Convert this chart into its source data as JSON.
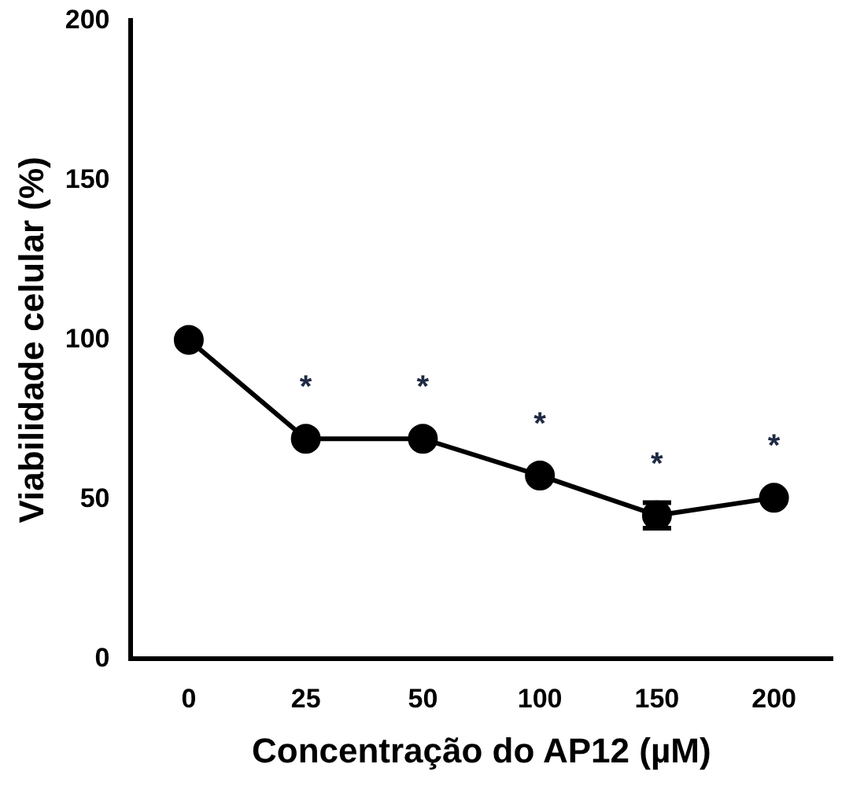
{
  "chart_data": {
    "type": "line",
    "xlabel": "Concentração do AP12 (µM)",
    "ylabel": "Viabilidade celular (%)",
    "categories": [
      "0",
      "25",
      "50",
      "100",
      "150",
      "200"
    ],
    "series": [
      {
        "color": "#000000",
        "values": [
          100,
          69,
          69,
          57.5,
          45,
          50.5
        ],
        "errors": [
          null,
          null,
          null,
          null,
          4,
          null
        ],
        "value_labels": [
          null,
          "*",
          "*",
          "*",
          "*",
          "*"
        ]
      }
    ],
    "ylim": [
      0,
      200
    ],
    "yticks": [
      0,
      50,
      100,
      150,
      200
    ],
    "grid": false,
    "legend": false,
    "marker": "circle",
    "line_style": "solid"
  }
}
